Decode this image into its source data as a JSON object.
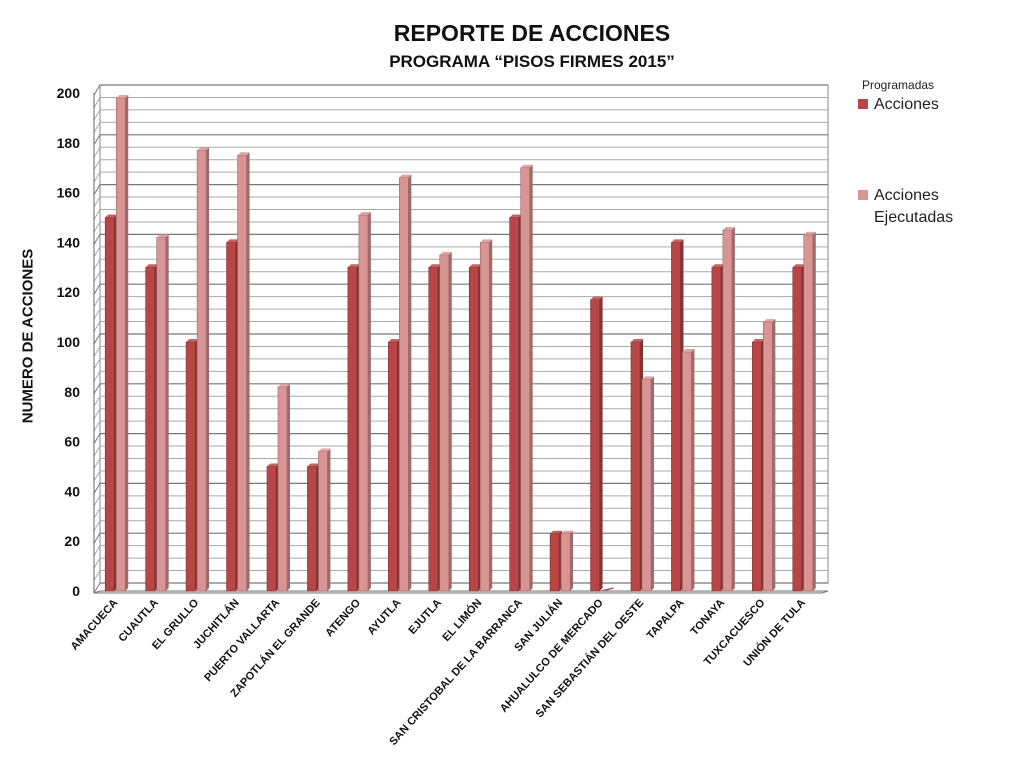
{
  "chart_data": {
    "type": "bar",
    "title": "REPORTE DE ACCIONES",
    "subtitle": "PROGRAMA “PISOS FIRMES 2015”",
    "xlabel": "",
    "ylabel": "NUMERO DE ACCIONES",
    "ylim": [
      0,
      200
    ],
    "yticks": [
      0,
      20,
      40,
      60,
      80,
      100,
      120,
      140,
      160,
      180,
      200
    ],
    "grid": true,
    "legend_position": "top-right",
    "legend_title": "Programadas",
    "categories": [
      "AMACUECA",
      "CUAUTLA",
      "EL GRULLO",
      "JUCHITLÁN",
      "PUERTO VALLARTA",
      "ZAPOTLÁN EL GRANDE",
      "ATENGO",
      "AYUTLA",
      "EJUTLA",
      "EL LIMÓN",
      "SAN CRISTOBAL DE LA BARRANCA",
      "SAN JULIÁN",
      "AHUALULCO DE MERCADO",
      "SAN SEBASTIÁN DEL OESTE",
      "TAPALPA",
      "TONAYA",
      "TUXCACUESCO",
      "UNIÓN DE TULA"
    ],
    "series": [
      {
        "name": "Acciones",
        "color": "#b84646",
        "values": [
          150,
          130,
          100,
          140,
          50,
          50,
          130,
          100,
          130,
          130,
          150,
          23,
          117,
          100,
          140,
          130,
          100,
          130
        ]
      },
      {
        "name": "Acciones Ejecutadas",
        "color": "#d99594",
        "values": [
          198,
          142,
          177,
          175,
          82,
          56,
          151,
          166,
          135,
          140,
          170,
          23,
          0,
          85,
          96,
          145,
          108,
          143
        ]
      }
    ]
  }
}
